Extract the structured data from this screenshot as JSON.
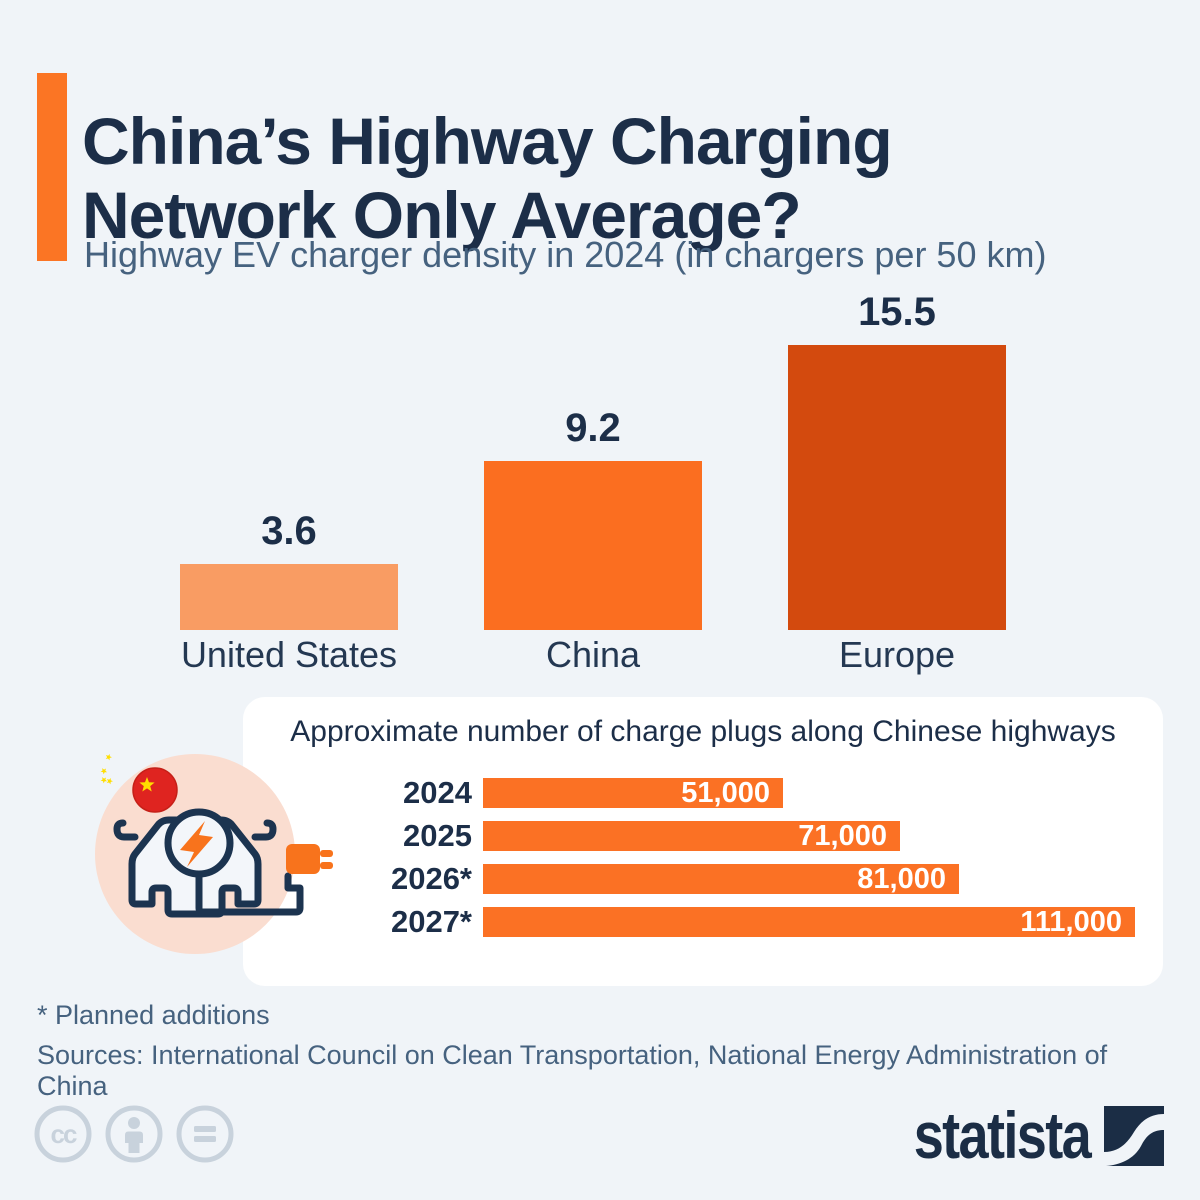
{
  "page": {
    "background_color": "#F0F4F8",
    "accent_color": "#FB7524",
    "navy_color": "#1C2E48",
    "slate_color": "#46627F"
  },
  "header": {
    "title": "China’s Highway Charging\nNetwork Only Average?",
    "subtitle": "Highway EV charger density in 2024 (in chargers per 50 km)"
  },
  "chart_data": [
    {
      "type": "bar",
      "orientation": "vertical",
      "title": "Highway EV charger density in 2024 (in chargers per 50 km)",
      "categories": [
        "United States",
        "China",
        "Europe"
      ],
      "values": [
        3.6,
        9.2,
        15.5
      ],
      "value_labels": [
        "3.6",
        "9.2",
        "15.5"
      ],
      "bar_colors": [
        "#F99C63",
        "#FB6E20",
        "#D34A0E"
      ],
      "ylim": [
        0,
        16.5
      ],
      "grid": false,
      "legend": "none",
      "xlabel": "",
      "ylabel": "chargers per 50 km"
    },
    {
      "type": "bar",
      "orientation": "horizontal",
      "title": "Approximate number of charge plugs along Chinese highways",
      "categories": [
        "2024",
        "2025",
        "2026*",
        "2027*"
      ],
      "values": [
        51000,
        71000,
        81000,
        111000
      ],
      "value_labels": [
        "51,000",
        "71,000",
        "81,000",
        "111,000"
      ],
      "bar_color": "#FB7124",
      "xlim": [
        0,
        111000
      ],
      "grid": false,
      "legend": "none"
    }
  ],
  "icon": {
    "name": "ev-car-charging-china-icon",
    "circle_color": "#FADDD0",
    "flag_color": "#DF2420",
    "star_color": "#FFDE00",
    "bolt_color": "#F8731C",
    "outline_color": "#1C3450"
  },
  "footnotes": {
    "asterisk": "* Planned additions",
    "sources": "Sources: International Council on Clean Transportation, National Energy Administration of China"
  },
  "branding": {
    "logo_text": "statista",
    "license_icons": [
      "cc-icon",
      "attribution-person-icon",
      "equals-icon"
    ],
    "license_color": "#C8D2DC",
    "logo_color": "#1B2D45"
  }
}
